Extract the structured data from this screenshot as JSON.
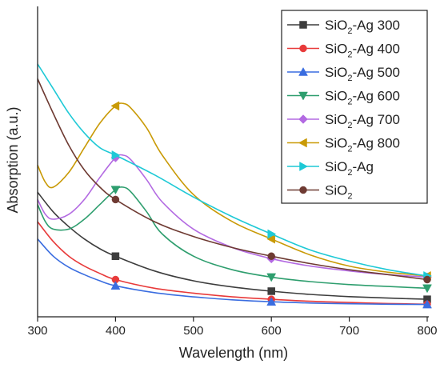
{
  "chart_data": {
    "type": "line",
    "xlabel": "Wavelength (nm)",
    "ylabel": "Absorption (a.u.)",
    "xlim": [
      300,
      800
    ],
    "ylim": [
      0,
      1
    ],
    "x_ticks": [
      300,
      400,
      500,
      600,
      700,
      800
    ],
    "y_ticks_labeled": false,
    "grid": false,
    "legend_placement": "top-right",
    "series": [
      {
        "name": "SiO2-Ag 300",
        "legend": {
          "main": "SiO",
          "sub": "2",
          "rest": "-Ag 300"
        },
        "color": "#3d3d3d",
        "marker": "square",
        "points": [
          [
            300,
            0.48
          ],
          [
            320,
            0.4
          ],
          [
            340,
            0.34
          ],
          [
            360,
            0.29
          ],
          [
            380,
            0.25
          ],
          [
            400,
            0.22
          ],
          [
            450,
            0.16
          ],
          [
            500,
            0.12
          ],
          [
            550,
            0.095
          ],
          [
            600,
            0.078
          ],
          [
            650,
            0.065
          ],
          [
            700,
            0.056
          ],
          [
            750,
            0.05
          ],
          [
            800,
            0.045
          ]
        ],
        "marker_x": [
          400,
          600,
          800
        ]
      },
      {
        "name": "SiO2-Ag 400",
        "legend": {
          "main": "SiO",
          "sub": "2",
          "rest": "-Ag 400"
        },
        "color": "#e83a3a",
        "marker": "circle",
        "points": [
          [
            300,
            0.36
          ],
          [
            320,
            0.28
          ],
          [
            340,
            0.22
          ],
          [
            360,
            0.18
          ],
          [
            380,
            0.15
          ],
          [
            400,
            0.125
          ],
          [
            450,
            0.09
          ],
          [
            500,
            0.07
          ],
          [
            550,
            0.055
          ],
          [
            600,
            0.045
          ],
          [
            650,
            0.037
          ],
          [
            700,
            0.032
          ],
          [
            750,
            0.028
          ],
          [
            800,
            0.025
          ]
        ],
        "marker_x": [
          400,
          600,
          800
        ]
      },
      {
        "name": "SiO2-Ag 500",
        "legend": {
          "main": "SiO",
          "sub": "2",
          "rest": "-Ag 500"
        },
        "color": "#3a6de0",
        "marker": "triangle-up",
        "points": [
          [
            300,
            0.29
          ],
          [
            320,
            0.22
          ],
          [
            340,
            0.175
          ],
          [
            360,
            0.145
          ],
          [
            380,
            0.12
          ],
          [
            400,
            0.1
          ],
          [
            450,
            0.072
          ],
          [
            500,
            0.055
          ],
          [
            550,
            0.043
          ],
          [
            600,
            0.035
          ],
          [
            650,
            0.03
          ],
          [
            700,
            0.027
          ],
          [
            750,
            0.025
          ],
          [
            800,
            0.024
          ]
        ],
        "marker_x": [
          400,
          600,
          800
        ]
      },
      {
        "name": "SiO2-Ag 600",
        "legend": {
          "main": "SiO",
          "sub": "2",
          "rest": "-Ag 600"
        },
        "color": "#2e9e6e",
        "marker": "triangle-down",
        "points": [
          [
            300,
            0.43
          ],
          [
            310,
            0.36
          ],
          [
            320,
            0.33
          ],
          [
            340,
            0.33
          ],
          [
            360,
            0.37
          ],
          [
            380,
            0.43
          ],
          [
            400,
            0.49
          ],
          [
            410,
            0.5
          ],
          [
            420,
            0.48
          ],
          [
            440,
            0.4
          ],
          [
            460,
            0.31
          ],
          [
            500,
            0.22
          ],
          [
            550,
            0.165
          ],
          [
            600,
            0.135
          ],
          [
            650,
            0.117
          ],
          [
            700,
            0.105
          ],
          [
            750,
            0.097
          ],
          [
            800,
            0.09
          ]
        ],
        "marker_x": [
          400,
          600,
          800
        ]
      },
      {
        "name": "SiO2-Ag 700",
        "legend": {
          "main": "SiO",
          "sub": "2",
          "rest": "-Ag 700"
        },
        "color": "#b36ae2",
        "marker": "diamond",
        "points": [
          [
            300,
            0.45
          ],
          [
            310,
            0.39
          ],
          [
            320,
            0.37
          ],
          [
            340,
            0.39
          ],
          [
            360,
            0.45
          ],
          [
            380,
            0.54
          ],
          [
            400,
            0.62
          ],
          [
            410,
            0.63
          ],
          [
            420,
            0.61
          ],
          [
            440,
            0.53
          ],
          [
            460,
            0.44
          ],
          [
            500,
            0.33
          ],
          [
            550,
            0.255
          ],
          [
            600,
            0.21
          ],
          [
            650,
            0.18
          ],
          [
            700,
            0.16
          ],
          [
            750,
            0.145
          ],
          [
            800,
            0.135
          ]
        ],
        "marker_x": [
          400,
          600,
          800
        ]
      },
      {
        "name": "SiO2-Ag 800",
        "legend": {
          "main": "SiO",
          "sub": "2",
          "rest": "-Ag 800"
        },
        "color": "#c99a06",
        "marker": "triangle-left",
        "points": [
          [
            300,
            0.59
          ],
          [
            310,
            0.52
          ],
          [
            320,
            0.5
          ],
          [
            340,
            0.56
          ],
          [
            360,
            0.66
          ],
          [
            380,
            0.76
          ],
          [
            400,
            0.83
          ],
          [
            410,
            0.84
          ],
          [
            420,
            0.82
          ],
          [
            440,
            0.74
          ],
          [
            460,
            0.63
          ],
          [
            500,
            0.47
          ],
          [
            550,
            0.36
          ],
          [
            600,
            0.29
          ],
          [
            650,
            0.225
          ],
          [
            700,
            0.18
          ],
          [
            750,
            0.155
          ],
          [
            800,
            0.14
          ]
        ],
        "marker_x": [
          400,
          600,
          800
        ]
      },
      {
        "name": "SiO2-Ag",
        "legend": {
          "main": "SiO",
          "sub": "2",
          "rest": "-Ag"
        },
        "color": "#1ec9d6",
        "marker": "triangle-right",
        "points": [
          [
            300,
            1.0
          ],
          [
            320,
            0.9
          ],
          [
            340,
            0.8
          ],
          [
            360,
            0.72
          ],
          [
            380,
            0.66
          ],
          [
            400,
            0.63
          ],
          [
            450,
            0.55
          ],
          [
            500,
            0.46
          ],
          [
            550,
            0.38
          ],
          [
            600,
            0.31
          ],
          [
            650,
            0.245
          ],
          [
            700,
            0.2
          ],
          [
            750,
            0.165
          ],
          [
            800,
            0.14
          ]
        ],
        "marker_x": [
          400,
          600,
          800
        ]
      },
      {
        "name": "SiO2",
        "legend": {
          "main": "SiO",
          "sub": "2",
          "rest": ""
        },
        "color": "#6e3a32",
        "marker": "circle",
        "points": [
          [
            300,
            0.94
          ],
          [
            320,
            0.8
          ],
          [
            340,
            0.67
          ],
          [
            360,
            0.57
          ],
          [
            380,
            0.5
          ],
          [
            400,
            0.45
          ],
          [
            450,
            0.36
          ],
          [
            500,
            0.3
          ],
          [
            550,
            0.255
          ],
          [
            600,
            0.22
          ],
          [
            650,
            0.19
          ],
          [
            700,
            0.165
          ],
          [
            750,
            0.145
          ],
          [
            800,
            0.125
          ]
        ],
        "marker_x": [
          400,
          600,
          800
        ]
      }
    ]
  }
}
